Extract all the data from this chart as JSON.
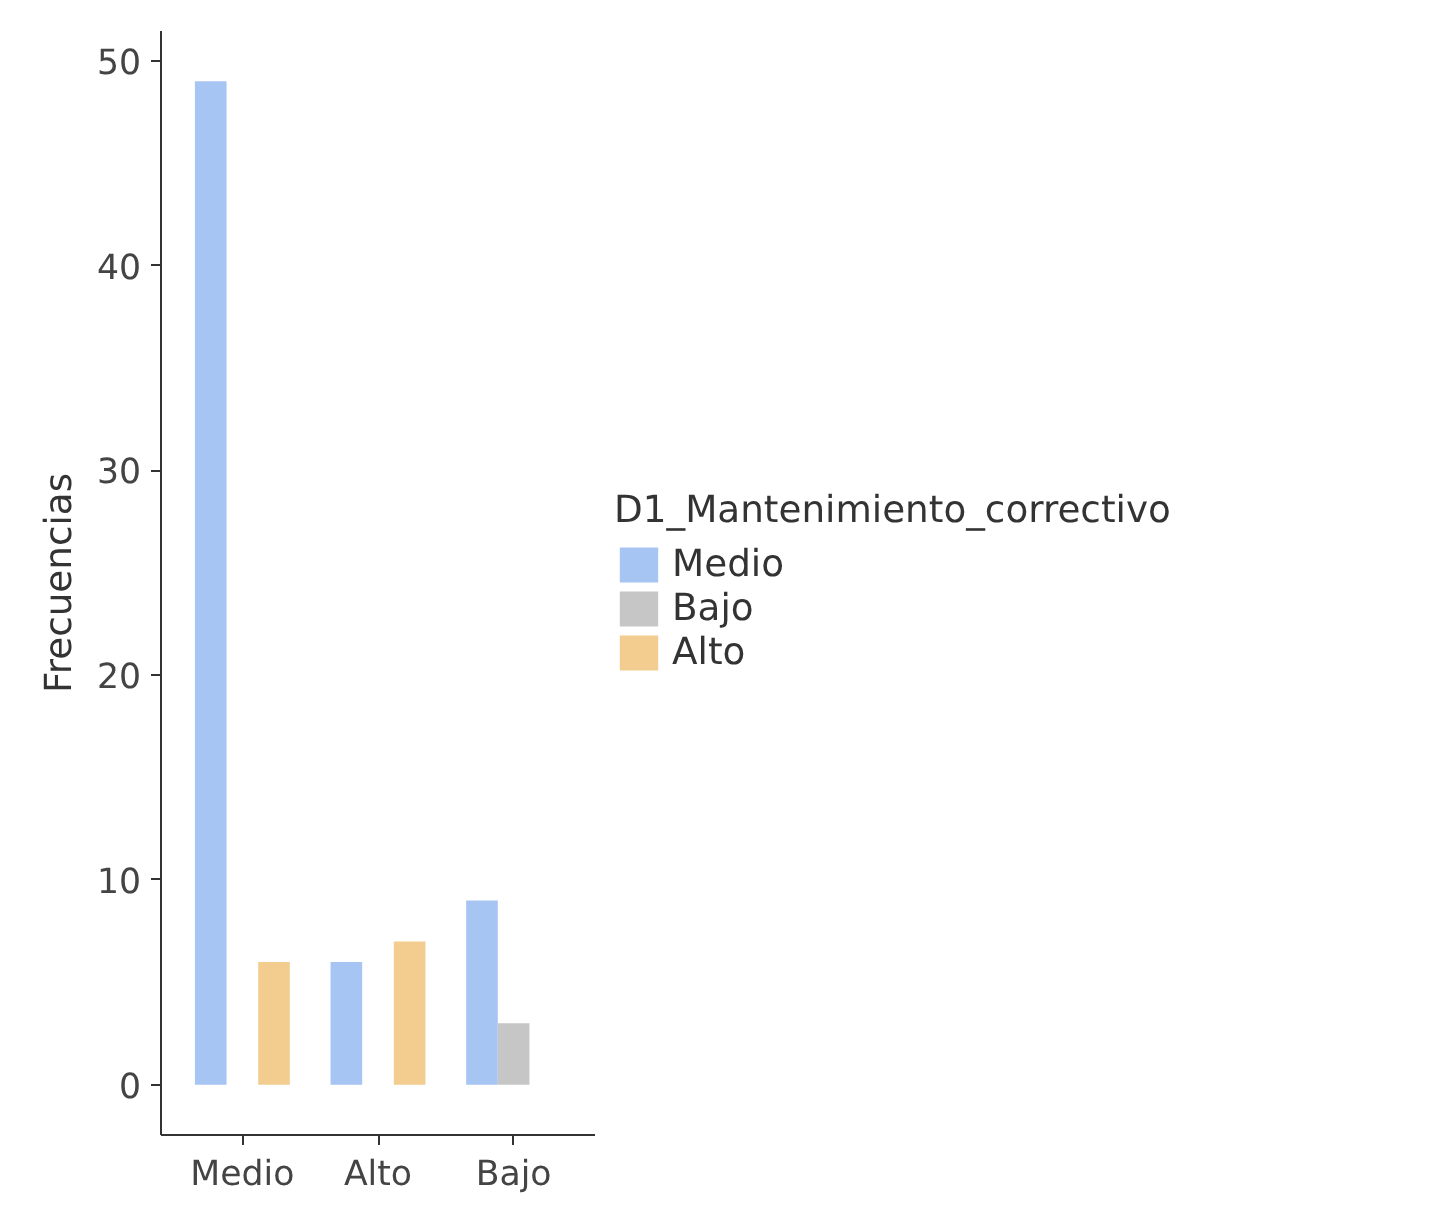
{
  "chart_data": {
    "type": "bar",
    "ylabel": "Frecuencias",
    "legend_title": "D1_Mantenimiento_correctivo",
    "categories": [
      "Medio",
      "Alto",
      "Bajo"
    ],
    "series": [
      {
        "name": "Medio",
        "color": "#a7c5f2",
        "values": [
          49,
          6,
          9
        ]
      },
      {
        "name": "Bajo",
        "color": "#c6c6c6",
        "values": [
          null,
          null,
          3
        ]
      },
      {
        "name": "Alto",
        "color": "#f2cd8f",
        "values": [
          6,
          7,
          null
        ]
      }
    ],
    "ylim": [
      -2.45,
      51.45
    ],
    "yticks": [
      0,
      10,
      20,
      30,
      40,
      50
    ],
    "legend": "right"
  }
}
